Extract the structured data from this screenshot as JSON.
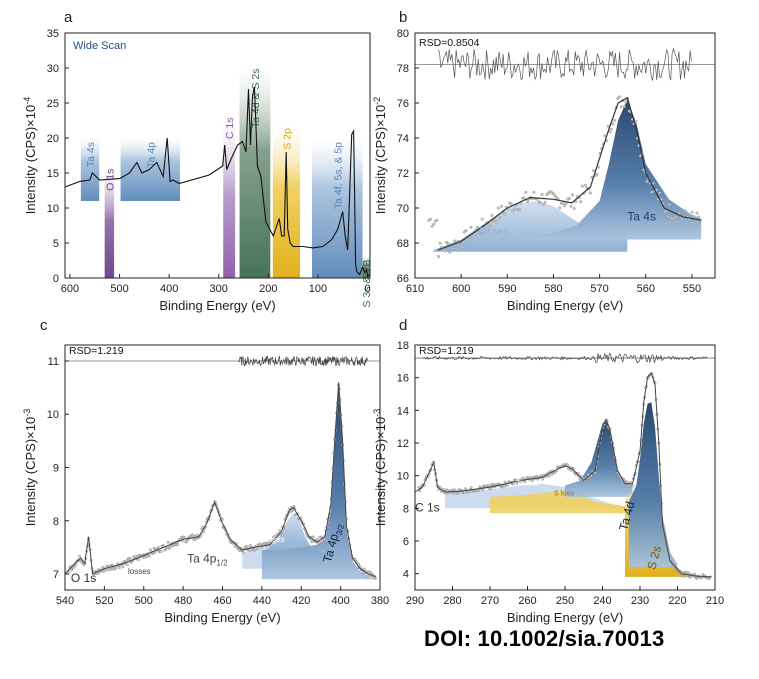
{
  "doi": "DOI:  10.1002/sia.70013",
  "chart_data": [
    {
      "panel": "a",
      "type": "line",
      "title": "Wide Scan",
      "xlabel": "Binding Energy (eV)",
      "ylabel": "Intensity (CPS)×10",
      "ylabel_exp": "-4",
      "xlim": [
        610,
        -5
      ],
      "ylim": [
        0,
        35
      ],
      "xticks": [
        600,
        500,
        400,
        300,
        200,
        100,
        0
      ],
      "yticks": [
        0,
        5,
        10,
        15,
        20,
        25,
        30,
        35
      ],
      "series": [
        {
          "name": "Wide Scan",
          "x": [
            610,
            580,
            560,
            555,
            540,
            500,
            480,
            465,
            455,
            440,
            425,
            412,
            404,
            398,
            392,
            380,
            320,
            292,
            288,
            284,
            275,
            262,
            252,
            245,
            240,
            236,
            232,
            228,
            225,
            222,
            215,
            205,
            190,
            178,
            173,
            168,
            164,
            161,
            156,
            150,
            130,
            110,
            90,
            72,
            60,
            50,
            45,
            40,
            32,
            28,
            26,
            24,
            22,
            20,
            16,
            10,
            5,
            2,
            0,
            -5
          ],
          "y": [
            13,
            13.8,
            14,
            15,
            14,
            14.2,
            15,
            16.5,
            15,
            15.5,
            16.5,
            14.5,
            20,
            13.8,
            14,
            13.5,
            14.7,
            16,
            19,
            15.5,
            17,
            19,
            19.5,
            18,
            27,
            19,
            26,
            27.3,
            22,
            16,
            14.5,
            8,
            6,
            8.5,
            6,
            6,
            18,
            7,
            5,
            4.5,
            4.5,
            4.3,
            4.5,
            5.5,
            7,
            9.5,
            6,
            4,
            20.5,
            21,
            12,
            2,
            1,
            0.8,
            0.5,
            1.5,
            0.8,
            1.2,
            0.5,
            0.3
          ]
        }
      ],
      "regions": [
        {
          "label": "Ta 4s",
          "from": 578,
          "to": 541,
          "ymax": 20,
          "color": "#5b87b8"
        },
        {
          "label": "O 1s",
          "from": 530,
          "to": 511,
          "ymax": 16.2,
          "color": "#6a3f8a"
        },
        {
          "label": "Ta 4p",
          "from": 498,
          "to": 378,
          "ymax": 20,
          "color": "#5b87b8"
        },
        {
          "label": "C 1s",
          "from": 291,
          "to": 267,
          "ymax": 23.5,
          "color": "#8b5aa8"
        },
        {
          "label": "Ta 4d & S 2s",
          "from": 258,
          "to": 196,
          "ymax": 30.5,
          "color": "#3d6b50"
        },
        {
          "label": "S 2p",
          "from": 191,
          "to": 136,
          "ymax": 22,
          "color": "#e6b820"
        },
        {
          "label": "Ta 4f, 5s, & 5p",
          "from": 112,
          "to": 10,
          "ymax": 20,
          "color": "#5b87b8"
        },
        {
          "label": "S 3s & VB",
          "from": 10,
          "to": -4,
          "ymax": 3.2,
          "color": "#3d6b50"
        }
      ]
    },
    {
      "panel": "b",
      "type": "line",
      "title": "RSD=0.8504",
      "xlabel": "Binding Energy (eV)",
      "ylabel": "Intensity (CPS)×10",
      "ylabel_exp": "-2",
      "xlim": [
        610,
        545
      ],
      "ylim": [
        66,
        80
      ],
      "xticks": [
        610,
        600,
        590,
        580,
        570,
        560,
        550
      ],
      "yticks": [
        66,
        68,
        70,
        72,
        74,
        76,
        78,
        80
      ],
      "annotations": [
        "losses",
        "Ta 4s"
      ],
      "series": [
        {
          "name": "envelope",
          "x": [
            605,
            600,
            595,
            590,
            585,
            580,
            576,
            572,
            568,
            566,
            564,
            562,
            560,
            556,
            552,
            548
          ],
          "y": [
            67.6,
            68.1,
            69,
            70,
            70.6,
            70.5,
            70.3,
            71.2,
            74.5,
            76,
            76.3,
            74.5,
            72,
            70,
            69.5,
            69.3
          ]
        },
        {
          "name": "Ta 4s",
          "x": [
            590,
            580,
            575,
            570,
            568,
            566,
            564,
            562,
            560,
            555,
            550,
            548
          ],
          "y": [
            68.2,
            68.6,
            69,
            70.4,
            72.5,
            75,
            76.2,
            74.8,
            72.5,
            70.5,
            69.6,
            69.4
          ]
        },
        {
          "name": "losses",
          "x": [
            606,
            600,
            594,
            588,
            584,
            580,
            576,
            572,
            568,
            564
          ],
          "y": [
            67.6,
            68.2,
            69.3,
            70.2,
            70.4,
            70.1,
            69.4,
            68.8,
            68.6,
            68.6
          ]
        }
      ]
    },
    {
      "panel": "c",
      "type": "line",
      "title": "RSD=1.219",
      "xlabel": "Binding Energy (eV)",
      "ylabel": "Intensity (CPS)×10",
      "ylabel_exp": "-3",
      "xlim": [
        540,
        380
      ],
      "ylim": [
        6.7,
        11.3
      ],
      "xticks": [
        540,
        520,
        500,
        480,
        460,
        440,
        420,
        400,
        380
      ],
      "yticks": [
        7,
        8,
        9,
        10,
        11
      ],
      "annotations": [
        "O 1s",
        "losses",
        "Ta 4p1/2",
        "losses",
        "Ta 4p3/2"
      ],
      "series": [
        {
          "name": "data",
          "x": [
            540,
            535,
            532,
            530,
            528,
            526,
            520,
            510,
            500,
            490,
            480,
            472,
            468,
            464,
            460,
            456,
            450,
            444,
            436,
            430,
            426,
            424,
            420,
            416,
            412,
            408,
            405,
            403,
            401,
            399,
            397,
            394,
            390,
            386,
            382
          ],
          "y": [
            7.0,
            7.2,
            7.3,
            7.2,
            7.7,
            7.0,
            7.1,
            7.2,
            7.35,
            7.5,
            7.65,
            7.7,
            7.95,
            8.35,
            7.95,
            7.65,
            7.45,
            7.5,
            7.55,
            7.8,
            8.2,
            8.25,
            8.0,
            7.7,
            7.6,
            7.7,
            8.3,
            9.5,
            10.6,
            9.5,
            7.9,
            7.3,
            7.1,
            7.0,
            6.95
          ]
        },
        {
          "name": "Ta 4p3/2",
          "x": [
            440,
            430,
            420,
            412,
            408,
            405,
            403,
            401,
            399,
            397,
            394,
            390,
            386,
            382
          ],
          "y": [
            7.45,
            7.45,
            7.5,
            7.55,
            7.65,
            8.2,
            9.4,
            10.5,
            9.4,
            7.8,
            7.25,
            7.05,
            6.95,
            6.9
          ]
        }
      ]
    },
    {
      "panel": "d",
      "type": "line",
      "title": "RSD=1.219",
      "xlabel": "Binding Energy (eV)",
      "ylabel": "Intensity (CPS)×10",
      "ylabel_exp": "-3",
      "xlim": [
        290,
        210
      ],
      "ylim": [
        3,
        18
      ],
      "xticks": [
        290,
        280,
        270,
        260,
        250,
        240,
        230,
        220,
        210
      ],
      "yticks": [
        4,
        6,
        8,
        10,
        12,
        14,
        16,
        18
      ],
      "annotations": [
        "C 1s",
        "Ta loss",
        "S loss",
        "Ta 4d",
        "S 2s"
      ],
      "series": [
        {
          "name": "data",
          "x": [
            290,
            288,
            286,
            285,
            284,
            282,
            278,
            270,
            262,
            256,
            252,
            250,
            248,
            245,
            242,
            240,
            239,
            238,
            236,
            234,
            232,
            230,
            229,
            228,
            227,
            226,
            225,
            224,
            222,
            219,
            215,
            211
          ],
          "y": [
            9.0,
            9.3,
            10.3,
            10.8,
            9.3,
            9.0,
            9.05,
            9.3,
            9.7,
            9.9,
            10.4,
            10.6,
            10.4,
            9.7,
            10.3,
            13.0,
            13.4,
            12.8,
            10.3,
            9.5,
            9.5,
            11.5,
            14.5,
            16.0,
            16.3,
            15.6,
            12.0,
            7.0,
            4.8,
            4.0,
            3.85,
            3.8
          ]
        }
      ]
    }
  ]
}
